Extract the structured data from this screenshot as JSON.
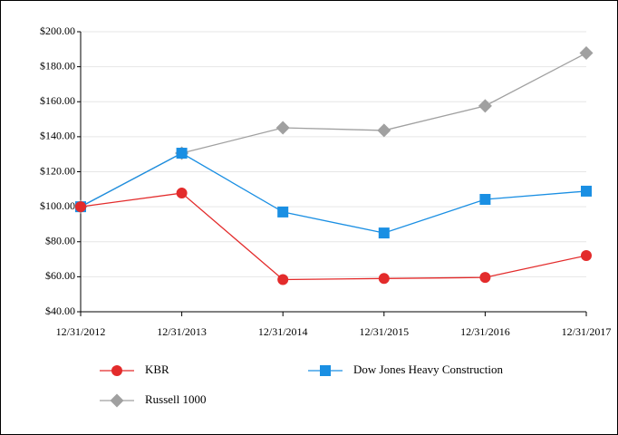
{
  "chart_data": {
    "type": "line",
    "categories": [
      "12/31/2012",
      "12/31/2013",
      "12/31/2014",
      "12/31/2015",
      "12/31/2016",
      "12/31/2017"
    ],
    "series": [
      {
        "name": "KBR",
        "color": "#e32b2b",
        "marker": "circle",
        "values": [
          100,
          107.8,
          58.4,
          59,
          59.6,
          72.1
        ]
      },
      {
        "name": "Dow Jones Heavy Construction",
        "color": "#1a8fe3",
        "marker": "square",
        "values": [
          100,
          130.6,
          97,
          85,
          104.2,
          108.9
        ]
      },
      {
        "name": "Russell 1000",
        "color": "#a0a0a0",
        "marker": "diamond",
        "values": [
          100,
          130.6,
          145.1,
          143.6,
          157.6,
          187.8
        ]
      }
    ],
    "ylim": [
      40,
      200
    ],
    "yticks": [
      {
        "value": 40,
        "label": "$40.00"
      },
      {
        "value": 60,
        "label": "$60.00"
      },
      {
        "value": 80,
        "label": "$80.00"
      },
      {
        "value": 100,
        "label": "$100.00"
      },
      {
        "value": 120,
        "label": "$120.00"
      },
      {
        "value": 140,
        "label": "$140.00"
      },
      {
        "value": 160,
        "label": "$160.00"
      },
      {
        "value": 180,
        "label": "$180.00"
      },
      {
        "value": 200,
        "label": "$200.00"
      }
    ],
    "grid": true
  }
}
